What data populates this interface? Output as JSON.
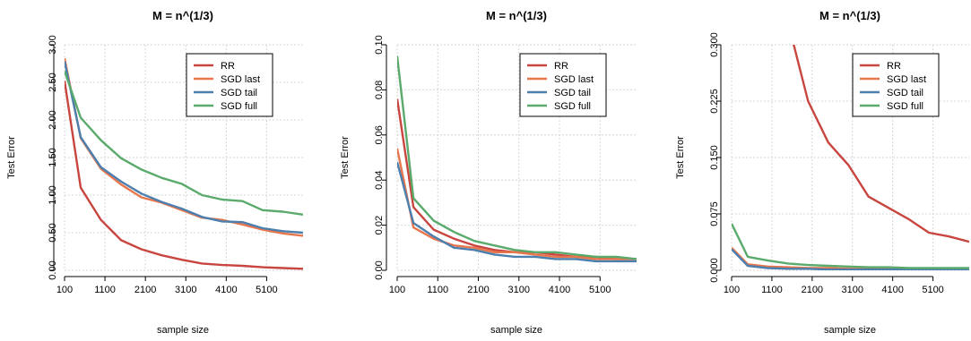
{
  "chart_data": [
    {
      "type": "line",
      "title": "M = n^(1/3)",
      "xlabel": "sample size",
      "ylabel": "Test Error",
      "xlim": [
        100,
        6000
      ],
      "ylim": [
        0,
        3.0
      ],
      "xticks": [
        "100",
        "1100",
        "2100",
        "3100",
        "4100",
        "5100"
      ],
      "yticks": [
        "0.00",
        "0.50",
        "1.00",
        "1.50",
        "2.00",
        "2.50",
        "3.00"
      ],
      "grid": true,
      "legend_position": "top-right",
      "x": [
        100,
        500,
        1000,
        1500,
        2000,
        2500,
        3000,
        3500,
        4000,
        4500,
        5000,
        5500,
        6000
      ],
      "series": [
        {
          "name": "RR",
          "color": "#c8463f",
          "values": [
            2.52,
            1.1,
            0.67,
            0.4,
            0.28,
            0.2,
            0.14,
            0.09,
            0.07,
            0.06,
            0.04,
            0.03,
            0.02
          ]
        },
        {
          "name": "SGD last",
          "color": "#e8764d",
          "values": [
            2.82,
            1.76,
            1.35,
            1.14,
            0.97,
            0.9,
            0.8,
            0.7,
            0.67,
            0.61,
            0.54,
            0.49,
            0.46
          ]
        },
        {
          "name": "SGD tail",
          "color": "#4d7fae",
          "values": [
            2.78,
            1.77,
            1.37,
            1.18,
            1.02,
            0.91,
            0.82,
            0.71,
            0.65,
            0.64,
            0.56,
            0.52,
            0.5
          ]
        },
        {
          "name": "SGD full",
          "color": "#5aaa6c",
          "values": [
            2.65,
            2.03,
            1.73,
            1.49,
            1.34,
            1.23,
            1.15,
            1.0,
            0.94,
            0.92,
            0.8,
            0.78,
            0.74
          ]
        }
      ]
    },
    {
      "type": "line",
      "title": "M = n^(1/3)",
      "xlabel": "sample size",
      "ylabel": "Test Error",
      "xlim": [
        100,
        6000
      ],
      "ylim": [
        0,
        0.1
      ],
      "xticks": [
        "100",
        "1100",
        "2100",
        "3100",
        "4100",
        "5100"
      ],
      "yticks": [
        "0.00",
        "0.02",
        "0.04",
        "0.06",
        "0.08",
        "0.10"
      ],
      "grid": true,
      "legend_position": "top-right",
      "x": [
        100,
        500,
        1000,
        1500,
        2000,
        2500,
        3000,
        3500,
        4000,
        4500,
        5000,
        5500,
        6000
      ],
      "series": [
        {
          "name": "RR",
          "color": "#c8463f",
          "values": [
            0.076,
            0.028,
            0.018,
            0.014,
            0.011,
            0.009,
            0.008,
            0.008,
            0.007,
            0.006,
            0.006,
            0.005,
            0.005
          ]
        },
        {
          "name": "SGD last",
          "color": "#e8764d",
          "values": [
            0.054,
            0.019,
            0.014,
            0.011,
            0.01,
            0.008,
            0.008,
            0.007,
            0.006,
            0.006,
            0.005,
            0.005,
            0.005
          ]
        },
        {
          "name": "SGD tail",
          "color": "#4d7fae",
          "values": [
            0.048,
            0.021,
            0.015,
            0.01,
            0.009,
            0.007,
            0.006,
            0.006,
            0.005,
            0.005,
            0.004,
            0.004,
            0.004
          ]
        },
        {
          "name": "SGD full",
          "color": "#5aaa6c",
          "values": [
            0.095,
            0.032,
            0.022,
            0.017,
            0.013,
            0.011,
            0.009,
            0.008,
            0.008,
            0.007,
            0.006,
            0.006,
            0.005
          ]
        }
      ]
    },
    {
      "type": "line",
      "title": "M = n^(1/3)",
      "xlabel": "sample size",
      "ylabel": "Test Error",
      "xlim": [
        100,
        6000
      ],
      "ylim": [
        0,
        0.3
      ],
      "xticks": [
        "100",
        "1100",
        "2100",
        "3100",
        "4100",
        "5100"
      ],
      "yticks": [
        "0.000",
        "0.075",
        "0.150",
        "0.225",
        "0.300"
      ],
      "grid": true,
      "legend_position": "top-right",
      "x": [
        100,
        500,
        1000,
        1500,
        2000,
        2500,
        3000,
        3500,
        4000,
        4500,
        5000,
        5500,
        6000
      ],
      "series": [
        {
          "name": "RR",
          "color": "#c8463f",
          "values": [
            null,
            null,
            null,
            0.33,
            0.225,
            0.17,
            0.14,
            0.098,
            0.083,
            0.068,
            0.05,
            0.045,
            0.038
          ]
        },
        {
          "name": "SGD last",
          "color": "#e8764d",
          "values": [
            0.03,
            0.008,
            0.005,
            0.004,
            0.003,
            0.003,
            0.002,
            0.002,
            0.002,
            0.002,
            0.002,
            0.002,
            0.002
          ]
        },
        {
          "name": "SGD tail",
          "color": "#4d7fae",
          "values": [
            0.028,
            0.006,
            0.003,
            0.002,
            0.002,
            0.001,
            0.001,
            0.001,
            0.001,
            0.001,
            0.001,
            0.001,
            0.001
          ]
        },
        {
          "name": "SGD full",
          "color": "#5aaa6c",
          "values": [
            0.062,
            0.018,
            0.013,
            0.009,
            0.007,
            0.006,
            0.005,
            0.004,
            0.004,
            0.003,
            0.003,
            0.003,
            0.003
          ]
        }
      ]
    }
  ]
}
